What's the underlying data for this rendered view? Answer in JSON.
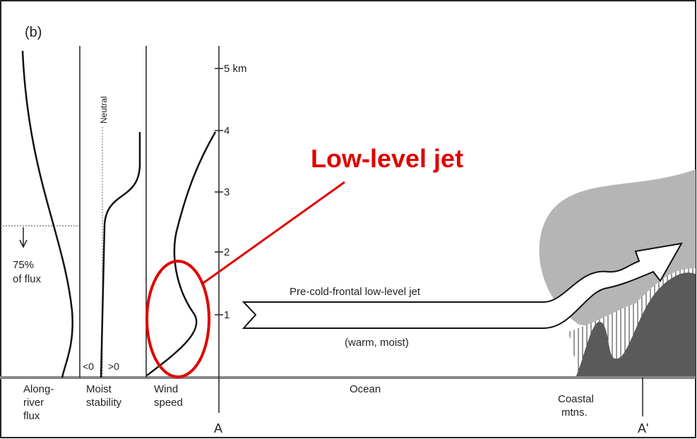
{
  "panel_label": "(b)",
  "height_ticks": [
    "5 km",
    "4",
    "3",
    "2",
    "1"
  ],
  "columns": [
    {
      "lines": [
        "Along-",
        "river",
        "flux"
      ]
    },
    {
      "lines": [
        "Moist",
        "stability"
      ]
    },
    {
      "lines": [
        "Wind",
        "speed"
      ]
    }
  ],
  "flux_note": [
    "75%",
    "of flux"
  ],
  "neutral_label": "Neutral",
  "stability_signs": [
    "<0",
    ">0"
  ],
  "section_ends": [
    "A",
    "A'"
  ],
  "ocean_label": "Ocean",
  "mountain_label": [
    "Coastal",
    "mtns."
  ],
  "jet_label": "Pre-cold-frontal low-level jet",
  "jet_note": "(warm, moist)",
  "callout": "Low-level jet"
}
